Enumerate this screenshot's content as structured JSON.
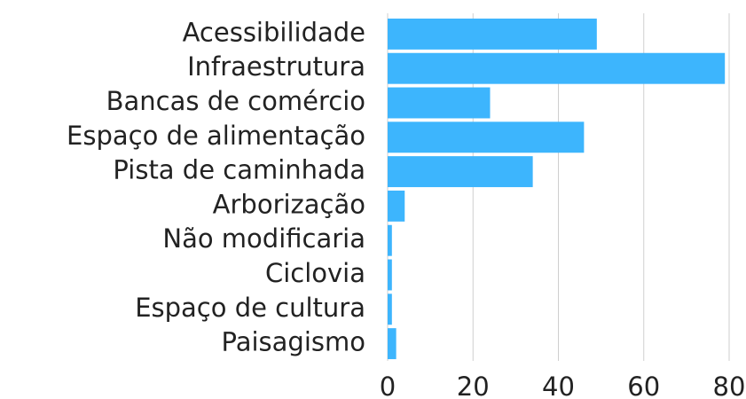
{
  "chart_data": {
    "type": "barh",
    "categories": [
      "Acessibilidade",
      "Infraestrutura",
      "Bancas de comércio",
      "Espaço de alimentação",
      "Pista de caminhada",
      "Arborização",
      "Não modificaria",
      "Ciclovia",
      "Espaço de cultura",
      "Paisagismo"
    ],
    "values": [
      49,
      79,
      24,
      46,
      34,
      4,
      1,
      1,
      1,
      2
    ],
    "color": "#3db5fd",
    "xlim": [
      0,
      80
    ],
    "xticks": [
      0,
      20,
      40,
      60,
      80
    ],
    "grid": true
  }
}
